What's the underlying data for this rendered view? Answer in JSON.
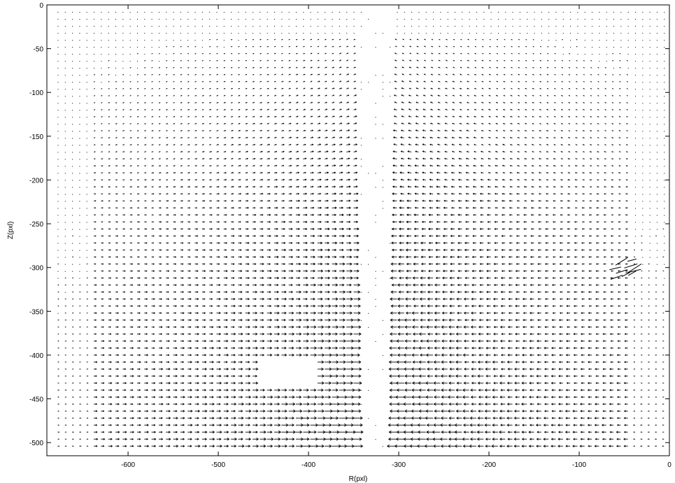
{
  "chart_data": {
    "type": "quiver",
    "title": "",
    "xlabel": "R(pxl)",
    "ylabel": "Z(pxl)",
    "xlim": [
      -690,
      0
    ],
    "ylim": [
      -515,
      0
    ],
    "xticks": [
      -600,
      -500,
      -400,
      -300,
      -200,
      -100,
      0
    ],
    "xtick_labels": [
      "-600",
      "-500",
      "-400",
      "-300",
      "-200",
      "-100",
      "0"
    ],
    "yticks": [
      0,
      -50,
      -100,
      -150,
      -200,
      -250,
      -300,
      -350,
      -400,
      -450,
      -500
    ],
    "ytick_labels": [
      "0",
      "-50",
      "-100",
      "-150",
      "-200",
      "-250",
      "-300",
      "-350",
      "-400",
      "-450",
      "-500"
    ],
    "grid": false,
    "box": true,
    "arrow_color": "#000000",
    "grid_spacing": 8,
    "jet_axis_r": -325,
    "jet_half_width": 18,
    "field_description_points": [
      {
        "r": -650,
        "z": -20,
        "u": 0.3,
        "v": 0.0
      },
      {
        "r": -600,
        "z": -100,
        "u": 1.5,
        "v": 0.0
      },
      {
        "r": -400,
        "z": -100,
        "u": 3.0,
        "v": 1.5
      },
      {
        "r": -360,
        "z": -180,
        "u": 7.0,
        "v": 3.0
      },
      {
        "r": -250,
        "z": -100,
        "u": -3.0,
        "v": 1.5
      },
      {
        "r": -290,
        "z": -180,
        "u": -7.0,
        "v": 3.0
      },
      {
        "r": -600,
        "z": -300,
        "u": 3.0,
        "v": 0.0
      },
      {
        "r": -400,
        "z": -350,
        "u": 8.0,
        "v": 0.0
      },
      {
        "r": -250,
        "z": -350,
        "u": -8.0,
        "v": 0.0
      },
      {
        "r": -100,
        "z": -300,
        "u": -2.5,
        "v": 0.0
      },
      {
        "r": -400,
        "z": -480,
        "u": 9.0,
        "v": 0.0
      },
      {
        "r": -250,
        "z": -480,
        "u": -9.0,
        "v": 0.0
      },
      {
        "r": -60,
        "z": -300,
        "u": 4.0,
        "v": 3.0
      }
    ]
  }
}
